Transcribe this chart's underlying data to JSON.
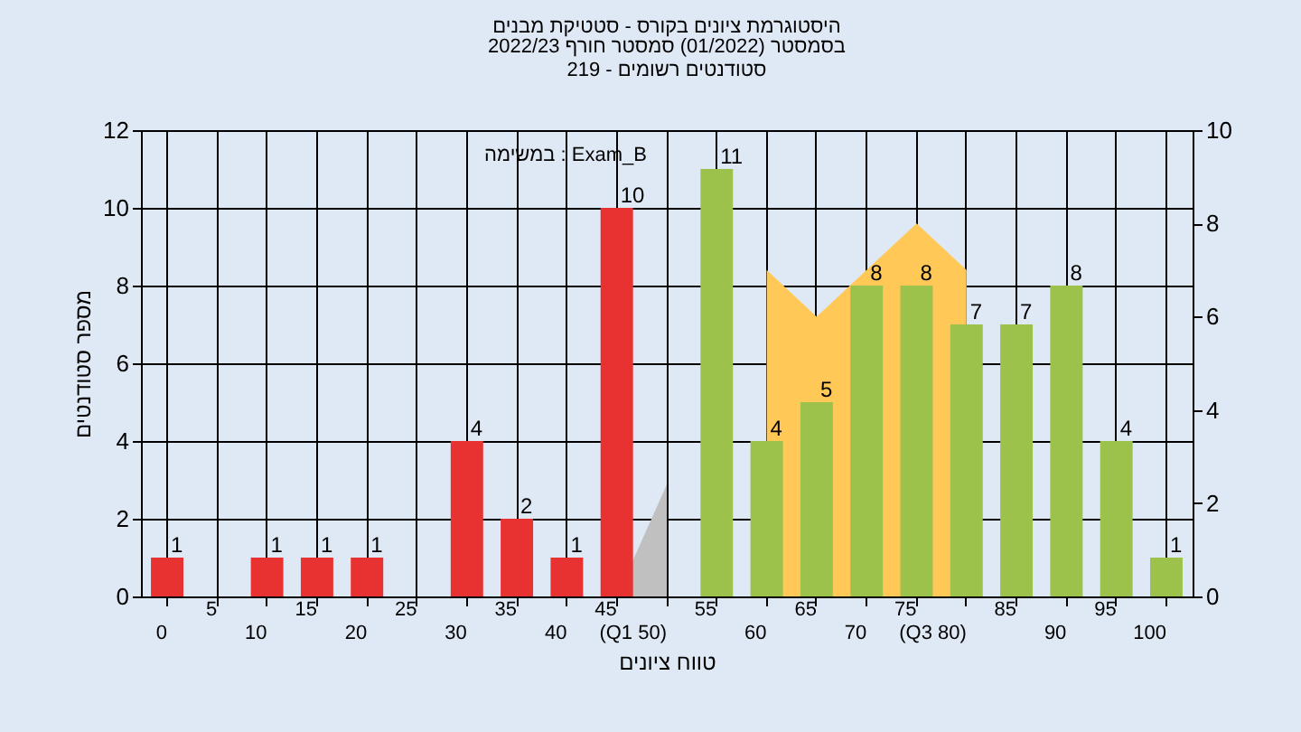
{
  "chart_data": {
    "type": "bar",
    "title": "היסטוגרמת ציונים בקורס - סטטיקת מבנים",
    "subtitle": "בסמסטר (01/2022) סמסטר חורף 2022/23\nסטודנטים רשומים - 219",
    "xlabel": "טווח ציונים",
    "ylabel": "מספר סטודנטים",
    "annotations": [
      "במשימה : Exam_B"
    ],
    "categories": [
      "0",
      "5",
      "10",
      "15",
      "20",
      "25",
      "30",
      "35",
      "40",
      "45",
      "(Q1 50)",
      "55",
      "60",
      "65",
      "70",
      "75",
      "(Q3 80)",
      "85",
      "90",
      "95",
      "100"
    ],
    "series": [
      {
        "type": "area",
        "axis": "y2",
        "color": "#c0c0c0",
        "x": [
          "45",
          "(Q1 50)"
        ],
        "values": [
          0,
          2.4
        ]
      },
      {
        "type": "area",
        "axis": "y2",
        "color": "#ffc857",
        "x": [
          "60",
          "65",
          "70",
          "75",
          "(Q3 80)"
        ],
        "values": [
          7,
          6,
          7,
          8,
          7
        ]
      },
      {
        "type": "bar",
        "values": [
          1,
          null,
          1,
          1,
          1,
          null,
          4,
          2,
          1,
          10,
          null,
          11,
          4,
          5,
          8,
          8,
          7,
          7,
          8,
          4,
          1
        ],
        "value_labels": [
          "1",
          null,
          "1",
          "1",
          "1",
          null,
          "4",
          "2",
          "1",
          "10",
          null,
          "11",
          "4",
          "5",
          "8",
          "8",
          "7",
          "7",
          "8",
          "4",
          "1"
        ],
        "colors": [
          "#e83232",
          "#e83232",
          "#e83232",
          "#e83232",
          "#e83232",
          "#e83232",
          "#e83232",
          "#e83232",
          "#e83232",
          "#e83232",
          "#e83232",
          "#9cc24c",
          "#9cc24c",
          "#9cc24c",
          "#9cc24c",
          "#9cc24c",
          "#9cc24c",
          "#9cc24c",
          "#9cc24c",
          "#9cc24c",
          "#9cc24c"
        ]
      }
    ],
    "ylim": [
      0,
      12
    ],
    "yticks": [
      0,
      2,
      4,
      6,
      8,
      10,
      12
    ],
    "y2lim": [
      0,
      10
    ],
    "y2ticks": [
      0,
      2,
      4,
      6,
      8,
      10
    ],
    "grid": true
  }
}
